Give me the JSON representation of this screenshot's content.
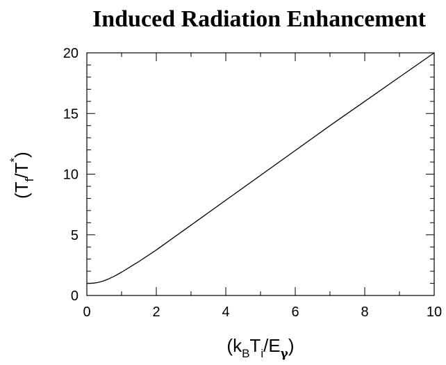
{
  "chart_data": {
    "type": "line",
    "title": "Induced Radiation Enhancement",
    "xlabel": {
      "open": "(k",
      "sub1": "B",
      "mid": "T",
      "sub2": "i",
      "slash": "/E",
      "sub3": "γ",
      "close": ")"
    },
    "ylabel": {
      "open": "(T",
      "sub": "f",
      "slash": "/T",
      "sup": "*",
      "close": ")"
    },
    "xlim": [
      0,
      10
    ],
    "ylim": [
      0,
      20
    ],
    "xticks": [
      0,
      2,
      4,
      6,
      8,
      10
    ],
    "yticks": [
      0,
      5,
      10,
      15,
      20
    ],
    "grid": false,
    "series": [
      {
        "x": [
          0,
          0.1,
          0.2,
          0.3,
          0.4,
          0.5,
          0.6,
          0.8,
          1.0,
          1.5,
          2,
          3,
          4,
          5,
          6,
          7,
          8,
          9,
          10
        ],
        "y": [
          1.0,
          1.0,
          1.02,
          1.06,
          1.13,
          1.22,
          1.33,
          1.6,
          1.92,
          2.8,
          3.75,
          5.8,
          7.85,
          9.9,
          11.95,
          14.0,
          16.0,
          18.0,
          20.0
        ]
      }
    ]
  }
}
